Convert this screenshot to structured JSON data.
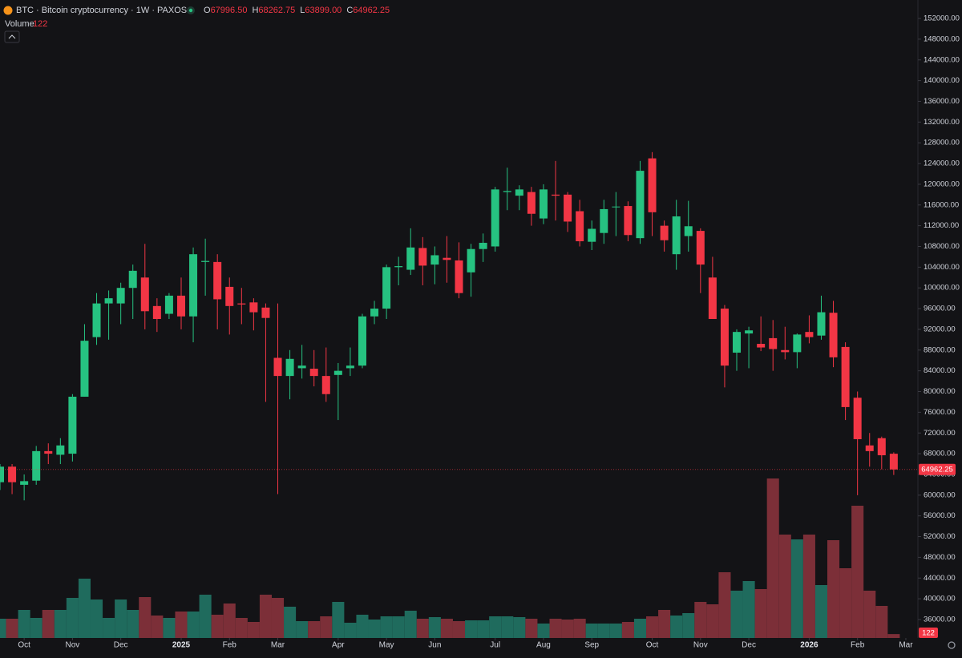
{
  "chart_data": {
    "type": "candlestick",
    "title": "BTC · Bitcoin cryptocurrency · 1W · PAXOS",
    "legend": [
      {
        "key": "O",
        "label": "67996.50"
      },
      {
        "key": "H",
        "label": "68262.75"
      },
      {
        "key": "L",
        "label": "63899.00"
      },
      {
        "key": "C",
        "label": "64962.25"
      }
    ],
    "volume_title": "Volume",
    "up_color": "#26c281",
    "down_color": "#f23645",
    "volume_up_color": "#1f6b5d",
    "volume_down_color": "#7c2f38",
    "open": [
      62500,
      65500,
      62000,
      62800,
      68500,
      67800,
      68000,
      79000,
      90500,
      97000,
      97000,
      100000,
      102000,
      96500,
      95000,
      98500,
      94500,
      105000,
      105000,
      100200,
      97000,
      97200,
      96200,
      86500,
      83000,
      84500,
      84400,
      83000,
      83200,
      84500,
      85000,
      94500,
      96000,
      104000,
      103500,
      107700,
      104500,
      105800,
      105300,
      103000,
      107500,
      108000,
      118500,
      117800,
      118500,
      113400,
      118000,
      118000,
      114800,
      108900,
      110600,
      115600,
      115800,
      109600,
      125000,
      112000,
      106500,
      110000,
      111000,
      102000,
      96000,
      87500,
      91200,
      89200,
      90300,
      88000,
      87600,
      91500,
      90800,
      95200,
      88600,
      78800,
      69600,
      71000,
      67996.5
    ],
    "high": [
      66000,
      66000,
      64000,
      69500,
      70000,
      71000,
      79500,
      93000,
      99000,
      99500,
      101000,
      104500,
      108500,
      98000,
      99000,
      102000,
      107800,
      109500,
      106500,
      102000,
      100000,
      98000,
      97000,
      97000,
      88000,
      89000,
      88000,
      88500,
      85500,
      88500,
      95000,
      97500,
      104500,
      106000,
      111500,
      109800,
      108000,
      110000,
      108800,
      108500,
      110500,
      119500,
      123200,
      119800,
      119500,
      120000,
      124500,
      118500,
      117000,
      113000,
      117000,
      118500,
      116700,
      124500,
      126200,
      113000,
      117000,
      116800,
      111500,
      106000,
      96700,
      92000,
      92500,
      94500,
      93800,
      92500,
      91200,
      94700,
      98500,
      97500,
      89500,
      80000,
      72000,
      71300,
      68262.75
    ],
    "low": [
      61000,
      60200,
      59000,
      62000,
      66000,
      66000,
      66500,
      79000,
      89000,
      90000,
      93000,
      94000,
      92000,
      91500,
      94000,
      92000,
      89500,
      98500,
      92000,
      91000,
      93000,
      91800,
      78000,
      60200,
      78500,
      82500,
      81000,
      78000,
      74500,
      83000,
      84500,
      93000,
      94000,
      100500,
      102500,
      100500,
      100700,
      101000,
      98000,
      98300,
      105000,
      107000,
      115000,
      115000,
      112000,
      112300,
      113000,
      110800,
      108000,
      107300,
      108500,
      110000,
      109000,
      108500,
      110000,
      107000,
      103500,
      107000,
      99000,
      94000,
      80800,
      84000,
      84500,
      87800,
      84000,
      86200,
      84500,
      89300,
      90000,
      84700,
      74500,
      60000,
      65500,
      65000,
      63899
    ],
    "close": [
      65500,
      62500,
      62700,
      68500,
      68000,
      69600,
      79000,
      89800,
      97000,
      98000,
      100000,
      103300,
      95500,
      94000,
      98500,
      94500,
      106500,
      105200,
      97800,
      96500,
      96800,
      95300,
      94200,
      83000,
      86300,
      85000,
      83000,
      79500,
      84000,
      85000,
      94500,
      96000,
      104000,
      104200,
      107800,
      104300,
      106300,
      105400,
      99000,
      107500,
      108700,
      119000,
      118700,
      119000,
      114300,
      119000,
      117800,
      112800,
      109000,
      111400,
      115200,
      115700,
      110200,
      122600,
      114600,
      109200,
      113800,
      111900,
      104500,
      94000,
      85000,
      91500,
      91800,
      88500,
      88200,
      87600,
      91000,
      90500,
      95300,
      86600,
      77000,
      70800,
      68500,
      67700,
      64962.25
    ],
    "volume": [
      600,
      600,
      875,
      625,
      875,
      875,
      1250,
      1850,
      1200,
      625,
      1200,
      875,
      1275,
      700,
      625,
      825,
      825,
      1350,
      725,
      1075,
      625,
      500,
      1350,
      1250,
      975,
      525,
      525,
      675,
      1125,
      475,
      725,
      575,
      675,
      675,
      850,
      600,
      650,
      600,
      525,
      550,
      550,
      675,
      675,
      650,
      600,
      450,
      600,
      575,
      600,
      450,
      450,
      450,
      500,
      600,
      675,
      875,
      700,
      775,
      1125,
      1050,
      2050,
      1475,
      1775,
      1525,
      4975,
      3225,
      3075,
      3225,
      1650,
      3050,
      2175,
      4125,
      1475,
      1000,
      122
    ],
    "xlim": [
      0,
      76
    ],
    "xticks": [
      {
        "value": 2,
        "label": "Oct"
      },
      {
        "value": 6,
        "label": "Nov"
      },
      {
        "value": 10,
        "label": "Dec"
      },
      {
        "value": 15,
        "label": "2025"
      },
      {
        "value": 19,
        "label": "Feb"
      },
      {
        "value": 23,
        "label": "Mar"
      },
      {
        "value": 28,
        "label": "Apr"
      },
      {
        "value": 32,
        "label": "May"
      },
      {
        "value": 36,
        "label": "Jun"
      },
      {
        "value": 41,
        "label": "Jul"
      },
      {
        "value": 45,
        "label": "Aug"
      },
      {
        "value": 49,
        "label": "Sep"
      },
      {
        "value": 54,
        "label": "Oct"
      },
      {
        "value": 58,
        "label": "Nov"
      },
      {
        "value": 62,
        "label": "Dec"
      },
      {
        "value": 67,
        "label": "2026"
      },
      {
        "value": 71,
        "label": "Feb"
      },
      {
        "value": 75,
        "label": "Mar"
      }
    ],
    "ylim": [
      32440,
      155560
    ],
    "yticks": [
      {
        "value": 36000,
        "label": "36000.00"
      },
      {
        "value": 40000,
        "label": "40000.00"
      },
      {
        "value": 44000,
        "label": "44000.00"
      },
      {
        "value": 48000,
        "label": "48000.00"
      },
      {
        "value": 52000,
        "label": "52000.00"
      },
      {
        "value": 56000,
        "label": "56000.00"
      },
      {
        "value": 60000,
        "label": "60000.00"
      },
      {
        "value": 64000,
        "label": "64000.00"
      },
      {
        "value": 68000,
        "label": "68000.00"
      },
      {
        "value": 72000,
        "label": "72000.00"
      },
      {
        "value": 76000,
        "label": "76000.00"
      },
      {
        "value": 80000,
        "label": "80000.00"
      },
      {
        "value": 84000,
        "label": "84000.00"
      },
      {
        "value": 88000,
        "label": "88000.00"
      },
      {
        "value": 92000,
        "label": "92000.00"
      },
      {
        "value": 96000,
        "label": "96000.00"
      },
      {
        "value": 100000,
        "label": "100000.00"
      },
      {
        "value": 104000,
        "label": "104000.00"
      },
      {
        "value": 108000,
        "label": "108000.00"
      },
      {
        "value": 112000,
        "label": "112000.00"
      },
      {
        "value": 116000,
        "label": "116000.00"
      },
      {
        "value": 120000,
        "label": "120000.00"
      },
      {
        "value": 124000,
        "label": "124000.00"
      },
      {
        "value": 128000,
        "label": "128000.00"
      },
      {
        "value": 132000,
        "label": "132000.00"
      },
      {
        "value": 136000,
        "label": "136000.00"
      },
      {
        "value": 140000,
        "label": "140000.00"
      },
      {
        "value": 144000,
        "label": "144000.00"
      },
      {
        "value": 148000,
        "label": "148000.00"
      },
      {
        "value": 152000,
        "label": "152000.00"
      }
    ],
    "grid": false
  }
}
